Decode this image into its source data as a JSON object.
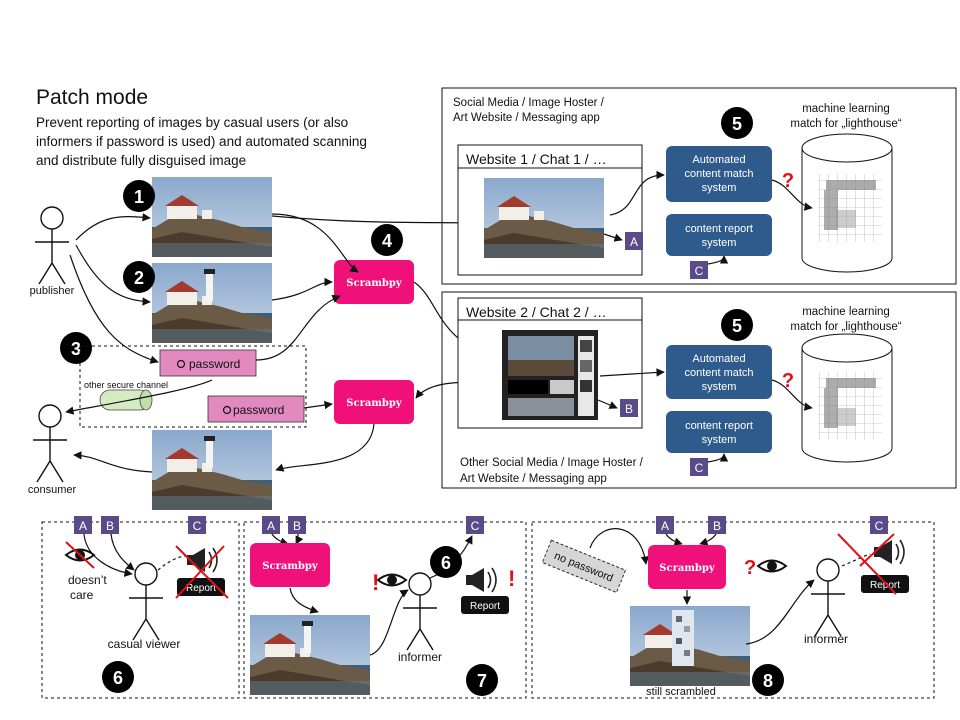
{
  "title": "Patch mode",
  "subtitle_lines": [
    "Prevent reporting of images by casual users (or also",
    "informers if password is used) and automated scanning",
    "and distribute fully disguised image"
  ],
  "actors": {
    "publisher": "publisher",
    "consumer": "consumer",
    "casual_viewer": "casual viewer",
    "informer_7": "informer",
    "informer_8": "informer"
  },
  "numbers": {
    "n1": "1",
    "n2": "2",
    "n3": "3",
    "n4": "4",
    "n5a": "5",
    "n5b": "5",
    "n6a": "6",
    "n6b": "6",
    "n7": "7",
    "n8": "8"
  },
  "scrambpy_label": "Scrambpy",
  "password_label": "password",
  "secure_channel_label": "other secure channel",
  "site_top": {
    "header_line1": "Social Media / Image Hoster /",
    "header_line2": "Art Website / Messaging app",
    "window_title": "Website 1 / Chat 1 / …",
    "ml_line1": "machine learning",
    "ml_line2": "match for „lighthouse“",
    "auto_match": [
      "Automated",
      "content match",
      "system"
    ],
    "report_system": [
      "content report",
      "system"
    ]
  },
  "site_bottom": {
    "footer_line1": "Other Social Media / Image Hoster /",
    "footer_line2": "Art Website / Messaging app",
    "window_title": "Website 2 / Chat 2 / …",
    "ml_line1": "machine learning",
    "ml_line2": "match for „lighthouse“",
    "auto_match": [
      "Automated",
      "content match",
      "system"
    ],
    "report_system": [
      "content report",
      "system"
    ]
  },
  "badges": {
    "a": "A",
    "b": "B",
    "c": "C"
  },
  "casual": {
    "doesnt_care_1": "doesn’t",
    "doesnt_care_2": "care",
    "report": "Report"
  },
  "informer7": {
    "report": "Report"
  },
  "informer8": {
    "no_password": "no password",
    "report": "Report",
    "still_scrambled": "still scrambled"
  },
  "marks": {
    "question": "?",
    "exclaim": "!"
  },
  "colors": {
    "scrambpy": "#f0107a",
    "password": "#e28ac0",
    "system_box": "#2f5b8c",
    "badge": "#5a4a8a",
    "secure_channel": "#d5ebc4"
  }
}
